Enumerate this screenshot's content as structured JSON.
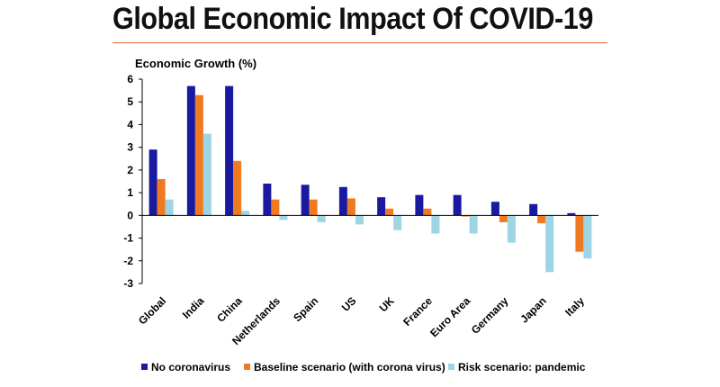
{
  "title": "Global Economic Impact Of COVID-19",
  "chart_data": {
    "type": "bar",
    "ylabel": "Economic Growth (%)",
    "xlabel": "",
    "ylim": [
      -3,
      6
    ],
    "yticks": [
      "6",
      "5",
      "4",
      "3",
      "2",
      "1",
      "0",
      "-1",
      "-2",
      "-3"
    ],
    "categories": [
      "Global",
      "India",
      "China",
      "Netherlands",
      "Spain",
      "US",
      "UK",
      "France",
      "Euro Area",
      "Germany",
      "Japan",
      "Italy"
    ],
    "series": [
      {
        "name": "No coronavirus",
        "color": "#1a1aa0",
        "values": [
          2.9,
          5.7,
          5.7,
          1.4,
          1.35,
          1.25,
          0.8,
          0.9,
          0.9,
          0.6,
          0.5,
          0.1
        ]
      },
      {
        "name": "Baseline scenario (with corona virus)",
        "color": "#f07a22",
        "values": [
          1.6,
          5.3,
          2.4,
          0.7,
          0.7,
          0.75,
          0.3,
          0.3,
          -0.05,
          -0.3,
          -0.35,
          -1.6
        ]
      },
      {
        "name": "Risk scenario: pandemic",
        "color": "#9ed4e4",
        "values": [
          0.7,
          3.6,
          0.2,
          -0.2,
          -0.3,
          -0.4,
          -0.65,
          -0.8,
          -0.8,
          -1.2,
          -2.5,
          -1.9
        ]
      }
    ],
    "grid": false,
    "legend_position": "bottom"
  }
}
